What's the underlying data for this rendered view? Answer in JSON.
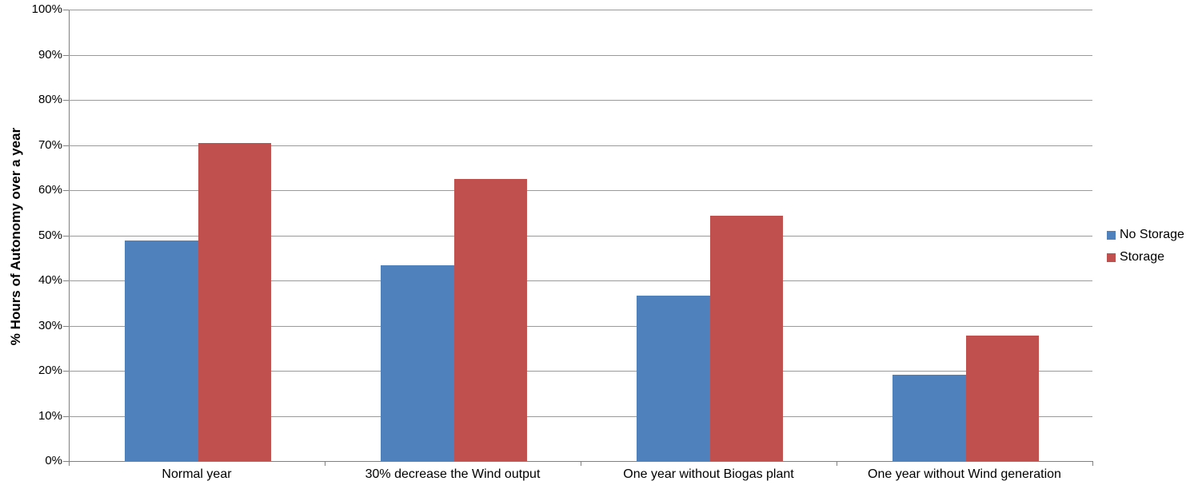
{
  "chart_data": {
    "type": "bar",
    "title": "",
    "xlabel": "",
    "ylabel": "% Hours of Autonomy over a year",
    "categories": [
      "Normal year",
      "30% decrease the Wind output",
      "One year without Biogas plant",
      "One year without Wind generation"
    ],
    "series": [
      {
        "name": "No Storage",
        "color": "#4F81BD",
        "values": [
          48.9,
          43.4,
          36.7,
          19.2
        ]
      },
      {
        "name": "Storage",
        "color": "#C0504D",
        "values": [
          70.4,
          62.5,
          54.4,
          27.8
        ]
      }
    ],
    "ylim": [
      0,
      100
    ],
    "ytick_step": 10,
    "ytick_labels": [
      "0%",
      "10%",
      "20%",
      "30%",
      "40%",
      "50%",
      "60%",
      "70%",
      "80%",
      "90%",
      "100%"
    ],
    "grid": true,
    "legend_position": "right"
  },
  "colors": {
    "background": "#FFFFFF",
    "gridline": "#9A9A9A",
    "axis": "#808080",
    "text": "#000000",
    "series_no_storage": "#4F81BD",
    "series_storage": "#C0504D"
  }
}
